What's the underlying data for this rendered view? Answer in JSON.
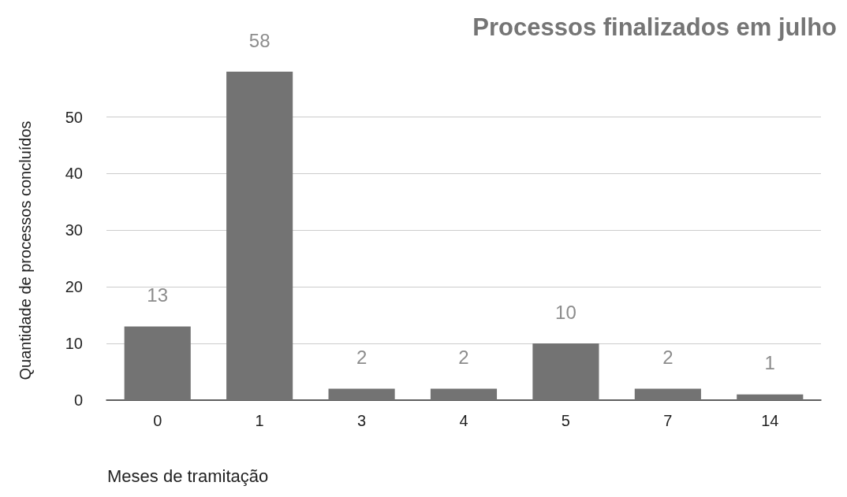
{
  "chart_data": {
    "type": "bar",
    "title": "Processos finalizados em julho",
    "xlabel": "Meses de tramitação",
    "ylabel": "Quantidade de processos concluídos",
    "categories": [
      "0",
      "1",
      "3",
      "4",
      "5",
      "7",
      "14"
    ],
    "values": [
      13,
      58,
      2,
      2,
      10,
      2,
      1
    ],
    "color": "#737373",
    "ylim": [
      0,
      58
    ],
    "yticks": [
      0,
      10,
      20,
      30,
      40,
      50
    ],
    "grid": "y",
    "data_labels": true
  }
}
